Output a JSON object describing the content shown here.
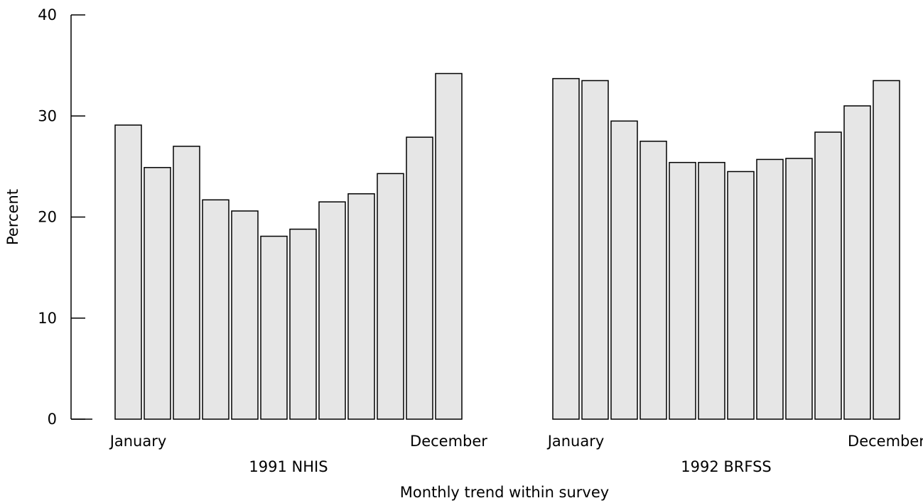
{
  "chart_data": {
    "type": "bar",
    "ylabel": "Percent",
    "xlabel": "Monthly trend within survey",
    "ylim": [
      0,
      40
    ],
    "yticks": [
      0,
      10,
      20,
      30,
      40
    ],
    "grid": false,
    "bar_color": "#e6e6e6",
    "groups": [
      {
        "name": "1991 NHIS",
        "first_month_label": "January",
        "last_month_label": "December",
        "values": [
          29.1,
          24.9,
          27.0,
          21.7,
          20.6,
          18.1,
          18.8,
          21.5,
          22.3,
          24.3,
          27.9,
          34.2
        ]
      },
      {
        "name": "1992 BRFSS",
        "first_month_label": "January",
        "last_month_label": "December",
        "values": [
          33.7,
          33.5,
          29.5,
          27.5,
          25.4,
          25.4,
          24.5,
          25.7,
          25.8,
          28.4,
          31.0,
          33.5
        ]
      }
    ]
  }
}
